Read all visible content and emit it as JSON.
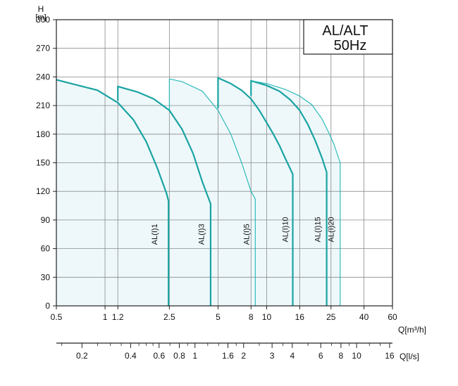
{
  "chart_data": {
    "type": "line",
    "title_lines": [
      "AL/ALT",
      "50Hz"
    ],
    "ylabel_top": "H",
    "ylabel_unit": "[m]",
    "xlabel": "Q[m³/h]",
    "x2label": "Q[l/s]",
    "x_scale": "log",
    "xlim": [
      0.5,
      60
    ],
    "ylim": [
      0,
      300
    ],
    "yticks": [
      0,
      30,
      60,
      90,
      120,
      150,
      180,
      210,
      240,
      270,
      300
    ],
    "xticks": [
      {
        "v": 0.5,
        "label": "0.5"
      },
      {
        "v": 1,
        "label": "1"
      },
      {
        "v": 1.2,
        "label": "1.2"
      },
      {
        "v": 2.5,
        "label": "2.5"
      },
      {
        "v": 5,
        "label": "5"
      },
      {
        "v": 8,
        "label": "8"
      },
      {
        "v": 10,
        "label": "10"
      },
      {
        "v": 16,
        "label": "16"
      },
      {
        "v": 25,
        "label": "25"
      },
      {
        "v": 40,
        "label": "40"
      },
      {
        "v": 60,
        "label": "60"
      }
    ],
    "x_gridlines": [
      1,
      1.2,
      2.5,
      5,
      8,
      10,
      16,
      25,
      40
    ],
    "x2ticks": [
      {
        "v": 0.72,
        "label": "0.2"
      },
      {
        "v": 1.44,
        "label": "0.4"
      },
      {
        "v": 2.16,
        "label": "0.6"
      },
      {
        "v": 2.88,
        "label": "0.8"
      },
      {
        "v": 3.6,
        "label": "1"
      },
      {
        "v": 5.76,
        "label": "1.6"
      },
      {
        "v": 7.2,
        "label": "2"
      },
      {
        "v": 10.8,
        "label": "3"
      },
      {
        "v": 14.4,
        "label": "4"
      },
      {
        "v": 21.6,
        "label": "6"
      },
      {
        "v": 28.8,
        "label": "8"
      },
      {
        "v": 36,
        "label": "10"
      },
      {
        "v": 57.6,
        "label": "16"
      }
    ],
    "x2_minor": [
      0.54,
      0.9,
      1.08,
      1.26,
      1.62,
      1.8,
      1.98,
      2.52,
      3.24,
      4.32,
      5.04,
      6.48,
      9.0,
      12.6,
      18.0,
      25.2,
      32.4,
      43.2,
      50.4
    ],
    "series": [
      {
        "name": "AL(I)1",
        "style": "dark",
        "x": [
          0.5,
          0.9,
          1.2,
          1.5,
          1.8,
          2.1,
          2.4,
          2.47,
          2.47
        ],
        "y": [
          237,
          226,
          213,
          195,
          172,
          145,
          118,
          110,
          0
        ]
      },
      {
        "name": "AL(I)3",
        "style": "dark",
        "x": [
          1.2,
          1.2,
          1.6,
          2.0,
          2.5,
          3.0,
          3.5,
          4.0,
          4.5,
          4.5
        ],
        "y": [
          215,
          230,
          224,
          217,
          205,
          185,
          160,
          130,
          107,
          0
        ]
      },
      {
        "name": "AL(I)5",
        "style": "light",
        "x": [
          2.5,
          2.5,
          3.0,
          4.0,
          5.0,
          6.0,
          7.0,
          8.0,
          8.5,
          8.5
        ],
        "y": [
          205,
          238,
          235,
          225,
          205,
          180,
          150,
          120,
          112,
          0
        ]
      },
      {
        "name": "AL(I)10",
        "style": "dark",
        "x": [
          5,
          5,
          6,
          7,
          8,
          9,
          10,
          11,
          12,
          13,
          14.5,
          14.5
        ],
        "y": [
          207,
          239,
          233,
          226,
          217,
          205,
          192,
          180,
          168,
          155,
          138,
          0
        ]
      },
      {
        "name": "AL(I)15",
        "style": "dark",
        "x": [
          8,
          8,
          10,
          12,
          14,
          16,
          18,
          20,
          22,
          23.5,
          23.5
        ],
        "y": [
          220,
          236,
          231,
          225,
          216,
          205,
          190,
          173,
          155,
          140,
          0
        ]
      },
      {
        "name": "AL(I)20",
        "style": "light",
        "x": [
          8,
          10,
          13,
          16,
          19,
          22,
          24,
          26,
          28.5,
          28.5
        ],
        "y": [
          236,
          233,
          227,
          220,
          211,
          196,
          183,
          170,
          150,
          0
        ]
      }
    ],
    "labels": [
      {
        "text": "AL(I)1",
        "x": 2.1,
        "y": 75
      },
      {
        "text": "AL(I)3",
        "x": 4.1,
        "y": 75
      },
      {
        "text": "AL(I)5",
        "x": 7.8,
        "y": 75
      },
      {
        "text": "AL(I)10",
        "x": 13.5,
        "y": 80
      },
      {
        "text": "AL(I)15",
        "x": 21.5,
        "y": 80
      },
      {
        "text": "AL(I)20",
        "x": 26.0,
        "y": 80
      }
    ],
    "colors": {
      "dark": "#1aa3a3",
      "light": "#1fb5b5",
      "fill": "#eef8fa",
      "grid": "#8a8a8a"
    },
    "grid": true
  }
}
